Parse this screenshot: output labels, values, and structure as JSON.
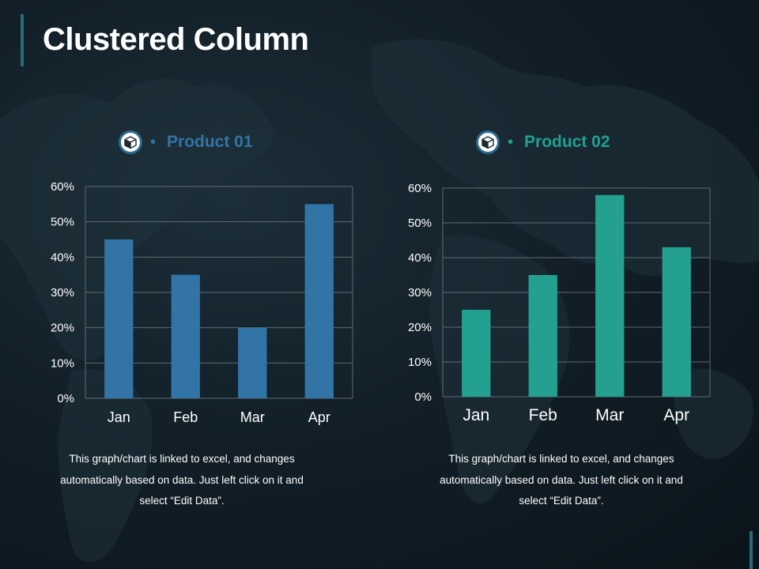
{
  "title": "Clustered Column",
  "colors": {
    "product1": "#3274a6",
    "product2": "#23a08f",
    "grid": "#5d6a72",
    "accent": "#2b6a78"
  },
  "panels": [
    {
      "legend": {
        "icon": "box-icon",
        "label": "Product 01",
        "color": "#3274a6"
      },
      "caption": [
        "This graph/chart is linked to excel, and changes",
        "automatically based on data. Just left click on it and",
        "select “Edit Data”."
      ]
    },
    {
      "legend": {
        "icon": "box-icon",
        "label": "Product 02",
        "color": "#23a08f"
      },
      "caption": [
        "This graph/chart is linked to excel, and changes",
        "automatically based on data. Just left click on it and",
        "select “Edit Data”."
      ]
    }
  ],
  "chart_data": [
    {
      "type": "bar",
      "categories": [
        "Jan",
        "Feb",
        "Mar",
        "Apr"
      ],
      "series": [
        {
          "name": "Product 01",
          "values": [
            45,
            35,
            20,
            55
          ]
        }
      ],
      "ylim": [
        0,
        60
      ],
      "yticks": [
        "0%",
        "10%",
        "20%",
        "30%",
        "40%",
        "50%",
        "60%"
      ],
      "grid": true,
      "color": "#3274a6"
    },
    {
      "type": "bar",
      "categories": [
        "Jan",
        "Feb",
        "Mar",
        "Apr"
      ],
      "series": [
        {
          "name": "Product 02",
          "values": [
            25,
            35,
            58,
            43
          ]
        }
      ],
      "ylim": [
        0,
        60
      ],
      "yticks": [
        "0%",
        "10%",
        "20%",
        "30%",
        "40%",
        "50%",
        "60%"
      ],
      "grid": true,
      "color": "#23a08f"
    }
  ]
}
